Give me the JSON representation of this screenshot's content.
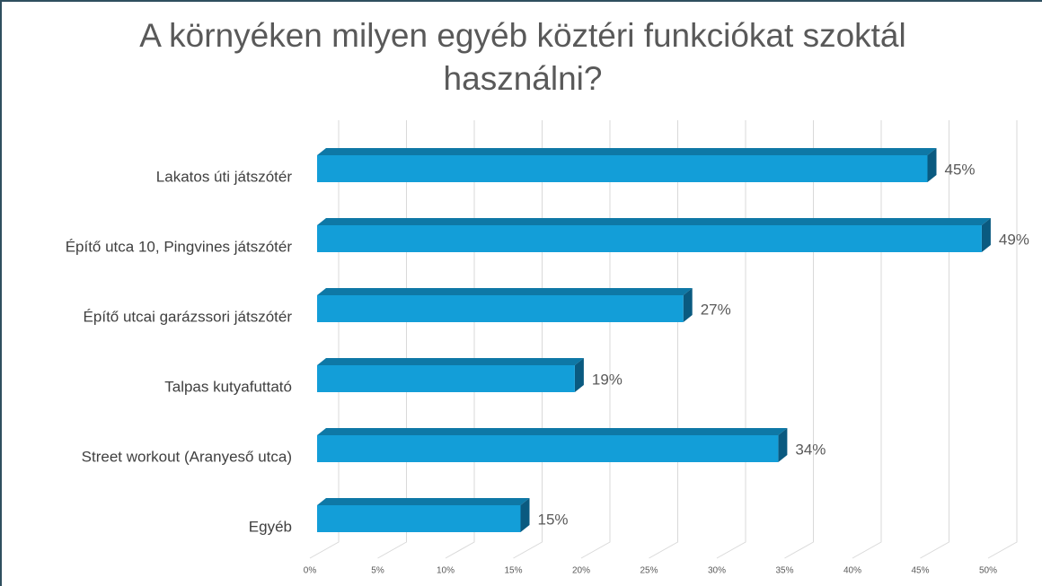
{
  "chart_data": {
    "type": "bar",
    "orientation": "horizontal",
    "title": "A környéken milyen egyéb köztéri funkciókat szoktál használni?",
    "categories": [
      "Lakatos úti játszótér",
      "Építő utca 10, Pingvines játszótér",
      "Építő utcai garázssori játszótér",
      "Talpas kutyafuttató",
      "Street workout (Aranyeső utca)",
      "Egyéb"
    ],
    "values": [
      45,
      49,
      27,
      19,
      34,
      15
    ],
    "value_labels": [
      "45%",
      "49%",
      "27%",
      "19%",
      "34%",
      "15%"
    ],
    "color": "#139ed8",
    "xlim": [
      0,
      50
    ],
    "xticks": [
      {
        "value": 0,
        "label": "0%"
      },
      {
        "value": 5,
        "label": "5%"
      },
      {
        "value": 10,
        "label": "10%"
      },
      {
        "value": 15,
        "label": "15%"
      },
      {
        "value": 20,
        "label": "20%"
      },
      {
        "value": 25,
        "label": "25%"
      },
      {
        "value": 30,
        "label": "30%"
      },
      {
        "value": 35,
        "label": "35%"
      },
      {
        "value": 40,
        "label": "40%"
      },
      {
        "value": 45,
        "label": "45%"
      },
      {
        "value": 50,
        "label": "50%"
      }
    ],
    "grid": true
  }
}
